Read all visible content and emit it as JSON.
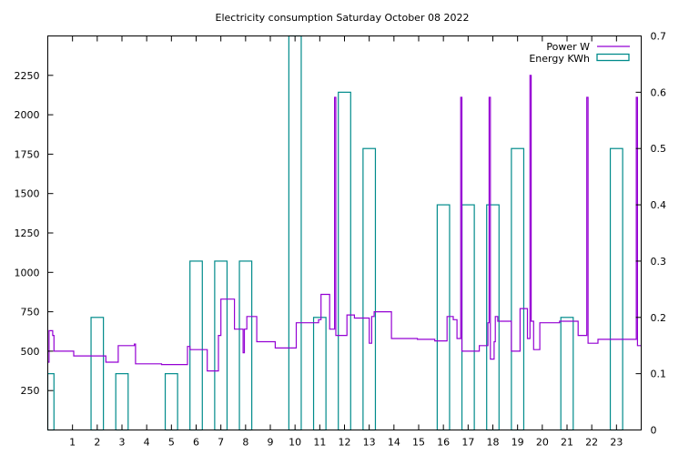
{
  "chart_data": {
    "type": "line",
    "title": "Electricity consumption Saturday October 08 2022",
    "grid": false,
    "legend": {
      "placement": "top-right"
    },
    "x": {
      "ticks": [
        1,
        2,
        3,
        4,
        5,
        6,
        7,
        8,
        9,
        10,
        11,
        12,
        13,
        14,
        15,
        16,
        17,
        18,
        19,
        20,
        21,
        22,
        23
      ],
      "range": [
        0,
        24
      ]
    },
    "y_left": {
      "ticks": [
        250,
        500,
        750,
        1000,
        1250,
        1500,
        1750,
        2000,
        2250
      ],
      "range": [
        0,
        2500
      ]
    },
    "y_right": {
      "ticks": [
        "0",
        "0.1",
        "0.2",
        "0.3",
        "0.4",
        "0.5",
        "0.6",
        "0.7"
      ],
      "range": [
        0,
        0.7
      ]
    },
    "series": [
      {
        "name": "Power W",
        "axis": "left",
        "color": "#9400d3",
        "style": "step",
        "points": [
          [
            0,
            430
          ],
          [
            0.05,
            630
          ],
          [
            0.2,
            600
          ],
          [
            0.25,
            500
          ],
          [
            1,
            500
          ],
          [
            1.05,
            470
          ],
          [
            2,
            470
          ],
          [
            2.35,
            430
          ],
          [
            2.8,
            430
          ],
          [
            2.85,
            535
          ],
          [
            3.3,
            535
          ],
          [
            3.5,
            545
          ],
          [
            3.55,
            420
          ],
          [
            4,
            420
          ],
          [
            4.55,
            420
          ],
          [
            4.6,
            415
          ],
          [
            5.6,
            415
          ],
          [
            5.65,
            530
          ],
          [
            5.75,
            510
          ],
          [
            6,
            510
          ],
          [
            6.4,
            510
          ],
          [
            6.45,
            375
          ],
          [
            6.85,
            375
          ],
          [
            6.9,
            600
          ],
          [
            7,
            830
          ],
          [
            7.5,
            830
          ],
          [
            7.55,
            640
          ],
          [
            7.85,
            640
          ],
          [
            7.9,
            490
          ],
          [
            7.95,
            640
          ],
          [
            8.05,
            720
          ],
          [
            8.3,
            720
          ],
          [
            8.45,
            560
          ],
          [
            9.1,
            560
          ],
          [
            9.2,
            520
          ],
          [
            10.0,
            520
          ],
          [
            10.05,
            680
          ],
          [
            10.8,
            680
          ],
          [
            10.95,
            700
          ],
          [
            11.05,
            860
          ],
          [
            11.35,
            860
          ],
          [
            11.4,
            640
          ],
          [
            11.55,
            640
          ],
          [
            11.6,
            2110
          ],
          [
            11.65,
            600
          ],
          [
            12.0,
            600
          ],
          [
            12.1,
            730
          ],
          [
            12.35,
            730
          ],
          [
            12.4,
            710
          ],
          [
            12.9,
            710
          ],
          [
            13.0,
            550
          ],
          [
            13.1,
            720
          ],
          [
            13.2,
            750
          ],
          [
            13.8,
            750
          ],
          [
            13.9,
            580
          ],
          [
            14.9,
            580
          ],
          [
            14.95,
            575
          ],
          [
            15.6,
            575
          ],
          [
            15.65,
            565
          ],
          [
            16.1,
            565
          ],
          [
            16.15,
            720
          ],
          [
            16.35,
            720
          ],
          [
            16.4,
            700
          ],
          [
            16.5,
            700
          ],
          [
            16.55,
            580
          ],
          [
            16.65,
            580
          ],
          [
            16.7,
            2110
          ],
          [
            16.75,
            500
          ],
          [
            17.4,
            500
          ],
          [
            17.45,
            535
          ],
          [
            17.75,
            535
          ],
          [
            17.8,
            680
          ],
          [
            17.85,
            2110
          ],
          [
            17.9,
            450
          ],
          [
            18.05,
            560
          ],
          [
            18.1,
            720
          ],
          [
            18.2,
            690
          ],
          [
            18.7,
            690
          ],
          [
            18.75,
            500
          ],
          [
            19.05,
            500
          ],
          [
            19.1,
            770
          ],
          [
            19.35,
            770
          ],
          [
            19.4,
            580
          ],
          [
            19.5,
            2250
          ],
          [
            19.55,
            690
          ],
          [
            19.65,
            510
          ],
          [
            19.8,
            510
          ],
          [
            19.9,
            680
          ],
          [
            20.6,
            680
          ],
          [
            20.7,
            690
          ],
          [
            21.4,
            690
          ],
          [
            21.45,
            600
          ],
          [
            21.75,
            600
          ],
          [
            21.8,
            2110
          ],
          [
            21.85,
            550
          ],
          [
            22.2,
            550
          ],
          [
            22.25,
            575
          ],
          [
            23.75,
            575
          ],
          [
            23.8,
            2110
          ],
          [
            23.85,
            535
          ],
          [
            24,
            535
          ]
        ]
      },
      {
        "name": "Energy KWh",
        "axis": "right",
        "color": "#008b8b",
        "style": "boxes",
        "values": [
          0.1,
          0,
          0.2,
          0.1,
          0,
          0.1,
          0.3,
          0.3,
          0.3,
          0,
          0.7,
          0.2,
          0.6,
          0.5,
          0,
          0,
          0.4,
          0.4,
          0.4,
          0.5,
          0,
          0.2,
          0,
          0.5
        ]
      }
    ]
  }
}
